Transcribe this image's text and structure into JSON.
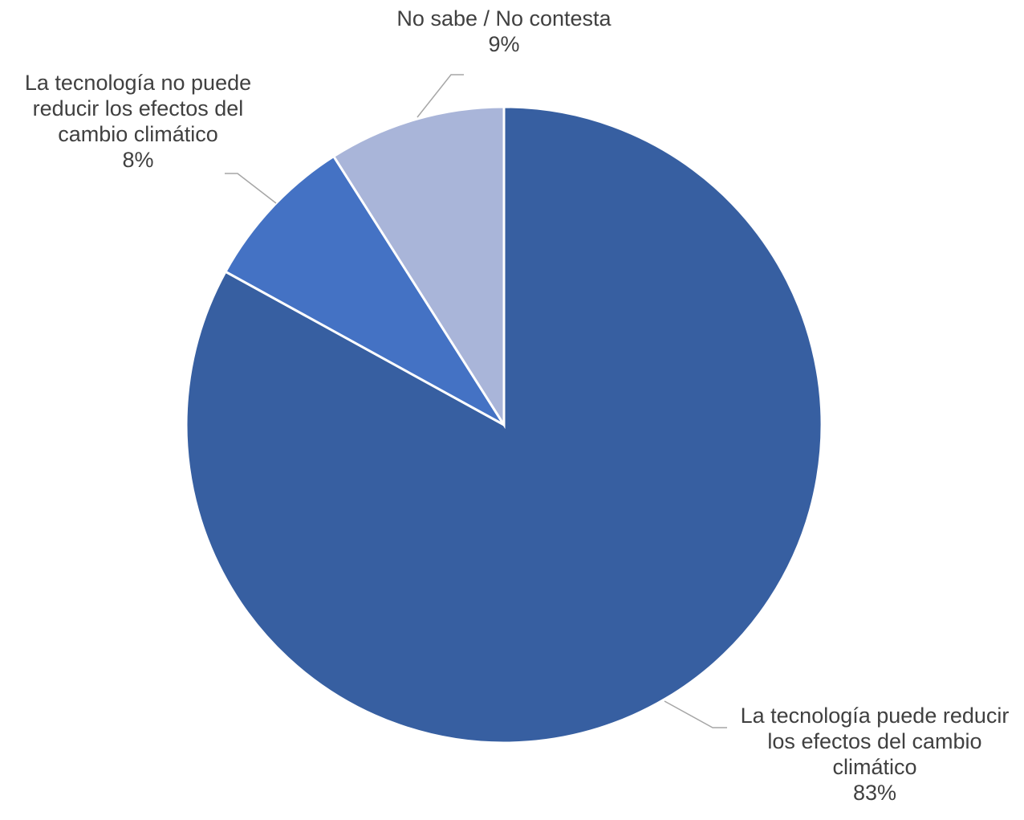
{
  "chart_data": {
    "type": "pie",
    "title": "",
    "slices": [
      {
        "label_lines": [
          "La tecnología puede reducir",
          "los efectos del cambio",
          "climático"
        ],
        "value": 83,
        "value_label": "83%",
        "color": "#375fa1"
      },
      {
        "label_lines": [
          "La tecnología no puede",
          "reducir los efectos del",
          "cambio climático"
        ],
        "value": 8,
        "value_label": "8%",
        "color": "#4472c4"
      },
      {
        "label_lines": [
          "No sabe / No contesta"
        ],
        "value": 9,
        "value_label": "9%",
        "color": "#a9b5d9"
      }
    ],
    "start_angle": "12 o'clock",
    "direction": "clockwise",
    "legend": "none",
    "data_labels": "outside with leader lines"
  }
}
